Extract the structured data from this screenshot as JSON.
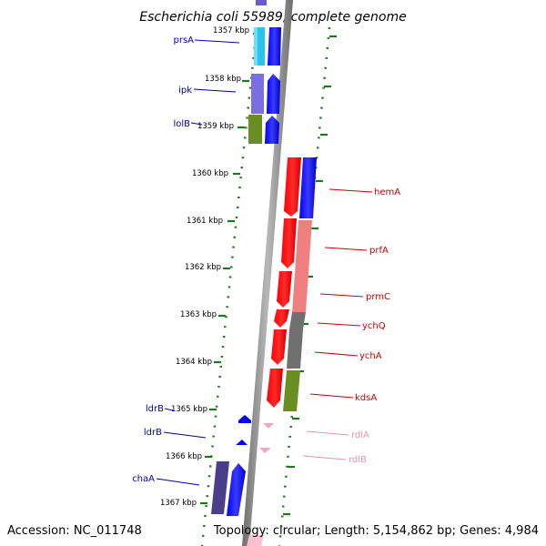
{
  "title": "Escherichia coli 55989, complete genome",
  "footer": {
    "accession": "Accession: NC_011748",
    "topology": "Topology: circular; Length: 5,154,862 bp; Genes: 4,984"
  },
  "colors": {
    "blue_label": "#0000aa",
    "red_label": "#cc0000",
    "pink_label": "#e890b0",
    "scale_dots": "#1a7a1a"
  },
  "scale_labels": [
    "1357 kbp",
    "1358 kbp",
    "1359 kbp",
    "1360 kbp",
    "1361 kbp",
    "1362 kbp",
    "1363 kbp",
    "1364 kbp",
    "1365 kbp",
    "1366 kbp",
    "1367 kbp"
  ],
  "left_genes": [
    "prsA",
    "ipk",
    "lolB",
    "ldrB",
    "ldrB",
    "chaA"
  ],
  "right_genes": [
    "hemA",
    "prfA",
    "prmC",
    "ychQ",
    "ychA",
    "kdsA",
    "rdlA",
    "rdlB"
  ]
}
